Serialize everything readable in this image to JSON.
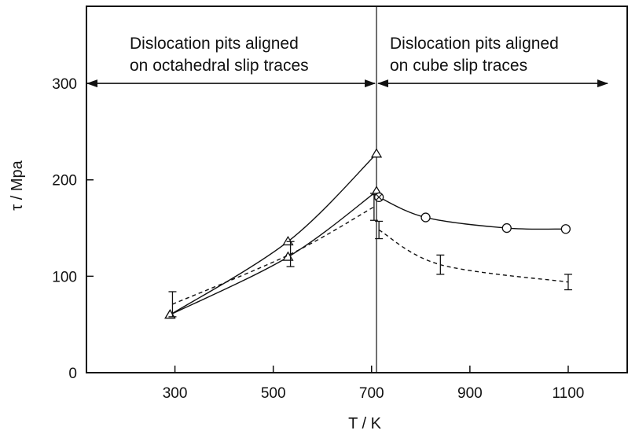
{
  "chart_data": {
    "type": "line",
    "title": "",
    "xlabel": "T / K",
    "ylabel": "τ / Mpa",
    "xlim": [
      120,
      1220
    ],
    "ylim": [
      0,
      380
    ],
    "x_ticks": [
      300,
      500,
      700,
      900,
      1100
    ],
    "x_tick_labels": [
      "300",
      "500",
      "700",
      "900",
      "1100"
    ],
    "y_ticks": [
      0,
      100,
      200,
      300
    ],
    "y_tick_labels": [
      "0",
      "100",
      "200",
      "300"
    ],
    "grid": false,
    "legend": "none",
    "annotations": {
      "divider_x": 710,
      "left_region": {
        "line1": "Dislocation pits aligned",
        "line2": "on octahedral slip traces",
        "arrow_range": [
          120,
          710
        ],
        "arrow_y": 300
      },
      "right_region": {
        "line1": "Dislocation pits aligned",
        "line2": "on cube slip traces",
        "arrow_range": [
          710,
          1180
        ],
        "arrow_y": 300
      }
    },
    "series": [
      {
        "marker": "triangle",
        "style": "solid",
        "points": [
          [
            290,
            60
          ],
          [
            530,
            136
          ],
          [
            710,
            227
          ]
        ]
      },
      {
        "marker": "triangle",
        "style": "solid",
        "points": [
          [
            290,
            60
          ],
          [
            530,
            120
          ],
          [
            710,
            188
          ]
        ]
      },
      {
        "marker": "circle",
        "style": "solid",
        "points": [
          [
            715,
            182
          ],
          [
            810,
            161
          ],
          [
            975,
            150
          ],
          [
            1095,
            149
          ]
        ]
      },
      {
        "marker": "errorbar",
        "style": "dashed",
        "points": [
          [
            295,
            71,
            13
          ],
          [
            535,
            123,
            13
          ],
          [
            705,
            172,
            14
          ],
          [
            715,
            148,
            9
          ],
          [
            840,
            112,
            10
          ],
          [
            1100,
            94,
            8
          ]
        ]
      }
    ]
  }
}
